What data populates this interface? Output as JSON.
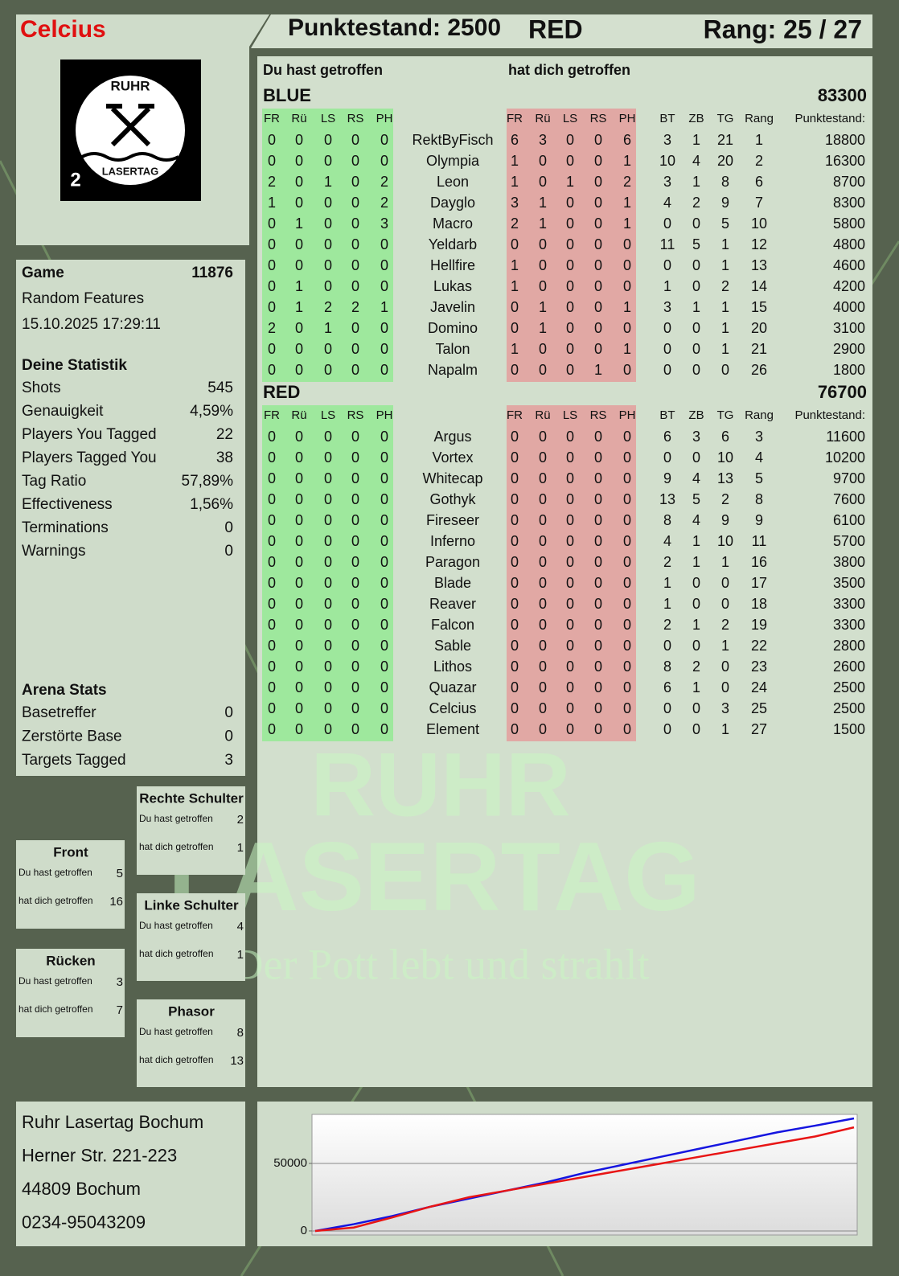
{
  "header": {
    "name": "Celcius",
    "score": "Punktestand: 2500",
    "team": "RED",
    "rank": "Rang: 25 / 27",
    "logo": {
      "top": "RUHR",
      "bottom": "LASERTAG",
      "badge": "2"
    }
  },
  "game": {
    "label": "Game",
    "id": 11876,
    "mode": "Random Features",
    "date": "15.10.2025 17:29:11"
  },
  "stats": {
    "title": "Deine Statistik",
    "rows": [
      [
        "Shots",
        545
      ],
      [
        "Genauigkeit",
        "4,59%"
      ],
      [
        "Players You Tagged",
        22
      ],
      [
        "Players Tagged You",
        38
      ],
      [
        "Tag Ratio",
        "57,89%"
      ],
      [
        "Effectiveness",
        "1,56%"
      ],
      [
        "Terminations",
        0
      ],
      [
        "Warnings",
        0
      ]
    ]
  },
  "arena": {
    "title": "Arena Stats",
    "rows": [
      [
        "Basetreffer",
        0
      ],
      [
        "Zerstörte Base",
        0
      ],
      [
        "Targets Tagged",
        3
      ]
    ]
  },
  "zones": {
    "labels": [
      "Du hast getroffen",
      "hat dich getroffen"
    ],
    "items": [
      {
        "name": "Rechte Schulter",
        "hit": 2,
        "got": 1
      },
      {
        "name": "Front",
        "hit": 5,
        "got": 16
      },
      {
        "name": "Linke Schulter",
        "hit": 4,
        "got": 1
      },
      {
        "name": "Rücken",
        "hit": 3,
        "got": 7
      },
      {
        "name": "Phasor",
        "hit": 8,
        "got": 13
      }
    ]
  },
  "address": [
    "Ruhr Lasertag Bochum",
    "Herner Str. 221-223",
    "44809 Bochum",
    "0234-95043209"
  ],
  "watermark": [
    "RUHR",
    "LASERTAG",
    "Der Pott lebt und strahlt"
  ],
  "table": {
    "gave_title": "Du hast getroffen",
    "got_title": "hat dich getroffen",
    "columns": {
      "zones": [
        "FR",
        "Rü",
        "LS",
        "RS",
        "PH"
      ],
      "stats": [
        "BT",
        "ZB",
        "TG",
        "Rang",
        "Punktestand:"
      ]
    }
  },
  "teams": [
    {
      "name": "BLUE",
      "score": 83300,
      "color": "#1010c8",
      "rows": [
        {
          "gave": [
            0,
            0,
            0,
            0,
            0
          ],
          "name": "RektByFisch",
          "got": [
            6,
            3,
            0,
            0,
            6
          ],
          "stats": [
            3,
            1,
            21,
            1,
            18800
          ]
        },
        {
          "gave": [
            0,
            0,
            0,
            0,
            0
          ],
          "name": "Olympia",
          "got": [
            1,
            0,
            0,
            0,
            1
          ],
          "stats": [
            10,
            4,
            20,
            2,
            16300
          ]
        },
        {
          "gave": [
            2,
            0,
            1,
            0,
            2
          ],
          "name": "Leon",
          "got": [
            1,
            0,
            1,
            0,
            2
          ],
          "stats": [
            3,
            1,
            8,
            6,
            8700
          ]
        },
        {
          "gave": [
            1,
            0,
            0,
            0,
            2
          ],
          "name": "Dayglo",
          "got": [
            3,
            1,
            0,
            0,
            1
          ],
          "stats": [
            4,
            2,
            9,
            7,
            8300
          ]
        },
        {
          "gave": [
            0,
            1,
            0,
            0,
            3
          ],
          "name": "Macro",
          "got": [
            2,
            1,
            0,
            0,
            1
          ],
          "stats": [
            0,
            0,
            5,
            10,
            5800
          ]
        },
        {
          "gave": [
            0,
            0,
            0,
            0,
            0
          ],
          "name": "Yeldarb",
          "got": [
            0,
            0,
            0,
            0,
            0
          ],
          "stats": [
            11,
            5,
            1,
            12,
            4800
          ]
        },
        {
          "gave": [
            0,
            0,
            0,
            0,
            0
          ],
          "name": "Hellfire",
          "got": [
            1,
            0,
            0,
            0,
            0
          ],
          "stats": [
            0,
            0,
            1,
            13,
            4600
          ]
        },
        {
          "gave": [
            0,
            1,
            0,
            0,
            0
          ],
          "name": "Lukas",
          "got": [
            1,
            0,
            0,
            0,
            0
          ],
          "stats": [
            1,
            0,
            2,
            14,
            4200
          ]
        },
        {
          "gave": [
            0,
            1,
            2,
            2,
            1
          ],
          "name": "Javelin",
          "got": [
            0,
            1,
            0,
            0,
            1
          ],
          "stats": [
            3,
            1,
            1,
            15,
            4000
          ]
        },
        {
          "gave": [
            2,
            0,
            1,
            0,
            0
          ],
          "name": "Domino",
          "got": [
            0,
            1,
            0,
            0,
            0
          ],
          "stats": [
            0,
            0,
            1,
            20,
            3100
          ]
        },
        {
          "gave": [
            0,
            0,
            0,
            0,
            0
          ],
          "name": "Talon",
          "got": [
            1,
            0,
            0,
            0,
            1
          ],
          "stats": [
            0,
            0,
            1,
            21,
            2900
          ]
        },
        {
          "gave": [
            0,
            0,
            0,
            0,
            0
          ],
          "name": "Napalm",
          "got": [
            0,
            0,
            0,
            1,
            0
          ],
          "stats": [
            0,
            0,
            0,
            26,
            1800
          ]
        }
      ]
    },
    {
      "name": "RED",
      "score": 76700,
      "color": "#e01010",
      "rows": [
        {
          "gave": [
            0,
            0,
            0,
            0,
            0
          ],
          "name": "Argus",
          "got": [
            0,
            0,
            0,
            0,
            0
          ],
          "stats": [
            6,
            3,
            6,
            3,
            11600
          ]
        },
        {
          "gave": [
            0,
            0,
            0,
            0,
            0
          ],
          "name": "Vortex",
          "got": [
            0,
            0,
            0,
            0,
            0
          ],
          "stats": [
            0,
            0,
            10,
            4,
            10200
          ]
        },
        {
          "gave": [
            0,
            0,
            0,
            0,
            0
          ],
          "name": "Whitecap",
          "got": [
            0,
            0,
            0,
            0,
            0
          ],
          "stats": [
            9,
            4,
            13,
            5,
            9700
          ]
        },
        {
          "gave": [
            0,
            0,
            0,
            0,
            0
          ],
          "name": "Gothyk",
          "got": [
            0,
            0,
            0,
            0,
            0
          ],
          "stats": [
            13,
            5,
            2,
            8,
            7600
          ]
        },
        {
          "gave": [
            0,
            0,
            0,
            0,
            0
          ],
          "name": "Fireseer",
          "got": [
            0,
            0,
            0,
            0,
            0
          ],
          "stats": [
            8,
            4,
            9,
            9,
            6100
          ]
        },
        {
          "gave": [
            0,
            0,
            0,
            0,
            0
          ],
          "name": "Inferno",
          "got": [
            0,
            0,
            0,
            0,
            0
          ],
          "stats": [
            4,
            1,
            10,
            11,
            5700
          ]
        },
        {
          "gave": [
            0,
            0,
            0,
            0,
            0
          ],
          "name": "Paragon",
          "got": [
            0,
            0,
            0,
            0,
            0
          ],
          "stats": [
            2,
            1,
            1,
            16,
            3800
          ]
        },
        {
          "gave": [
            0,
            0,
            0,
            0,
            0
          ],
          "name": "Blade",
          "got": [
            0,
            0,
            0,
            0,
            0
          ],
          "stats": [
            1,
            0,
            0,
            17,
            3500
          ]
        },
        {
          "gave": [
            0,
            0,
            0,
            0,
            0
          ],
          "name": "Reaver",
          "got": [
            0,
            0,
            0,
            0,
            0
          ],
          "stats": [
            1,
            0,
            0,
            18,
            3300
          ]
        },
        {
          "gave": [
            0,
            0,
            0,
            0,
            0
          ],
          "name": "Falcon",
          "got": [
            0,
            0,
            0,
            0,
            0
          ],
          "stats": [
            2,
            1,
            2,
            19,
            3300
          ]
        },
        {
          "gave": [
            0,
            0,
            0,
            0,
            0
          ],
          "name": "Sable",
          "got": [
            0,
            0,
            0,
            0,
            0
          ],
          "stats": [
            0,
            0,
            1,
            22,
            2800
          ]
        },
        {
          "gave": [
            0,
            0,
            0,
            0,
            0
          ],
          "name": "Lithos",
          "got": [
            0,
            0,
            0,
            0,
            0
          ],
          "stats": [
            8,
            2,
            0,
            23,
            2600
          ]
        },
        {
          "gave": [
            0,
            0,
            0,
            0,
            0
          ],
          "name": "Quazar",
          "got": [
            0,
            0,
            0,
            0,
            0
          ],
          "stats": [
            6,
            1,
            0,
            24,
            2500
          ]
        },
        {
          "gave": [
            0,
            0,
            0,
            0,
            0
          ],
          "name": "Celcius",
          "got": [
            0,
            0,
            0,
            0,
            0
          ],
          "stats": [
            0,
            0,
            3,
            25,
            2500
          ]
        },
        {
          "gave": [
            0,
            0,
            0,
            0,
            0
          ],
          "name": "Element",
          "got": [
            0,
            0,
            0,
            0,
            0
          ],
          "stats": [
            0,
            0,
            1,
            27,
            1500
          ]
        }
      ]
    }
  ],
  "chart_data": {
    "type": "line",
    "categories": [
      null,
      null,
      null,
      null,
      null,
      null,
      null,
      null,
      null,
      null,
      null,
      null,
      null,
      null,
      null
    ],
    "series": [
      {
        "name": "BLUE",
        "color": "#1515e0",
        "values": [
          0,
          5000,
          11000,
          18000,
          24000,
          30000,
          36000,
          43000,
          49000,
          55000,
          61000,
          67000,
          73000,
          78000,
          83300
        ]
      },
      {
        "name": "RED",
        "color": "#e81515",
        "values": [
          0,
          2500,
          10000,
          18000,
          25000,
          30000,
          35000,
          40000,
          45000,
          50000,
          55000,
          60000,
          65000,
          70000,
          76700
        ]
      }
    ],
    "ylim": [
      -3000,
      86300
    ],
    "yticks": [
      0,
      50000
    ],
    "grid": true
  }
}
